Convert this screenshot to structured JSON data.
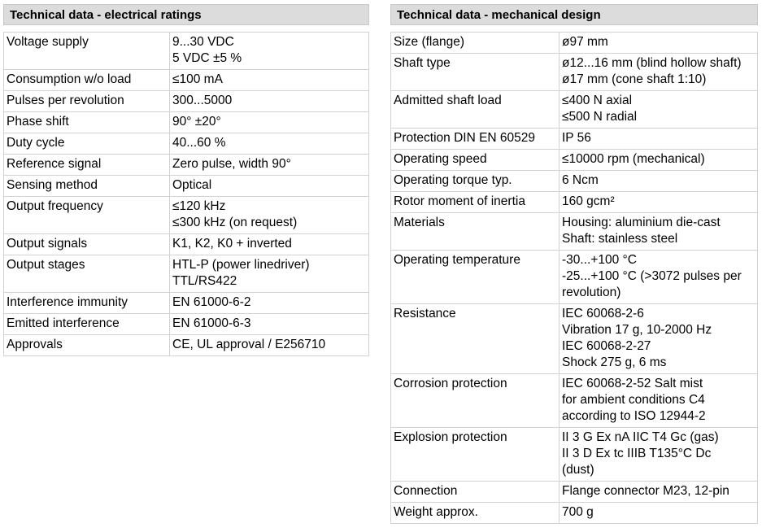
{
  "electrical": {
    "title": "Technical data - electrical ratings",
    "rows": [
      {
        "label": "Voltage supply",
        "values": [
          "9...30 VDC",
          "5 VDC ±5 %"
        ]
      },
      {
        "label": "Consumption w/o load",
        "values": [
          "≤100 mA"
        ]
      },
      {
        "label": "Pulses per revolution",
        "values": [
          "300...5000"
        ]
      },
      {
        "label": "Phase shift",
        "values": [
          "90° ±20°"
        ]
      },
      {
        "label": "Duty cycle",
        "values": [
          "40...60 %"
        ]
      },
      {
        "label": "Reference signal",
        "values": [
          "Zero pulse, width 90°"
        ]
      },
      {
        "label": "Sensing method",
        "values": [
          "Optical"
        ]
      },
      {
        "label": "Output frequency",
        "values": [
          "≤120 kHz",
          "≤300 kHz (on request)"
        ]
      },
      {
        "label": "Output signals",
        "values": [
          "K1, K2, K0 + inverted"
        ]
      },
      {
        "label": "Output stages",
        "values": [
          "HTL-P (power linedriver)",
          "TTL/RS422"
        ]
      },
      {
        "label": "Interference immunity",
        "values": [
          "EN 61000-6-2"
        ]
      },
      {
        "label": "Emitted interference",
        "values": [
          "EN 61000-6-3"
        ]
      },
      {
        "label": "Approvals",
        "values": [
          "CE, UL approval / E256710"
        ]
      }
    ]
  },
  "mechanical": {
    "title": "Technical data - mechanical design",
    "rows": [
      {
        "label": "Size (flange)",
        "values": [
          "ø97 mm"
        ]
      },
      {
        "label": "Shaft type",
        "values": [
          "ø12...16 mm (blind hollow shaft)",
          "ø17 mm (cone shaft 1:10)"
        ]
      },
      {
        "label": "Admitted shaft load",
        "values": [
          "≤400 N axial",
          "≤500 N radial"
        ]
      },
      {
        "label": "Protection DIN EN 60529",
        "values": [
          "IP 56"
        ]
      },
      {
        "label": "Operating speed",
        "values": [
          "≤10000 rpm (mechanical)"
        ]
      },
      {
        "label": "Operating torque typ.",
        "values": [
          "6 Ncm"
        ]
      },
      {
        "label": "Rotor moment of inertia",
        "values": [
          "160 gcm²"
        ]
      },
      {
        "label": "Materials",
        "values": [
          "Housing: aluminium die-cast",
          "Shaft: stainless steel"
        ]
      },
      {
        "label": "Operating temperature",
        "values": [
          "-30...+100 °C",
          "-25...+100 °C (>3072 pulses per",
          "revolution)"
        ]
      },
      {
        "label": "Resistance",
        "values": [
          "IEC 60068-2-6",
          "Vibration 17 g, 10-2000 Hz",
          "IEC 60068-2-27",
          "Shock 275 g, 6 ms"
        ]
      },
      {
        "label": "Corrosion protection",
        "values": [
          "IEC 60068-2-52 Salt mist",
          "for ambient conditions C4",
          "according to ISO 12944-2"
        ]
      },
      {
        "label": "Explosion protection",
        "values": [
          "II 3 G Ex nA IIC T4 Gc (gas)",
          "II 3 D Ex tc IIIB T135°C Dc",
          "(dust)"
        ]
      },
      {
        "label": "Connection",
        "values": [
          "Flange connector M23, 12-pin"
        ]
      },
      {
        "label": "Weight approx.",
        "values": [
          "700 g"
        ]
      }
    ]
  }
}
